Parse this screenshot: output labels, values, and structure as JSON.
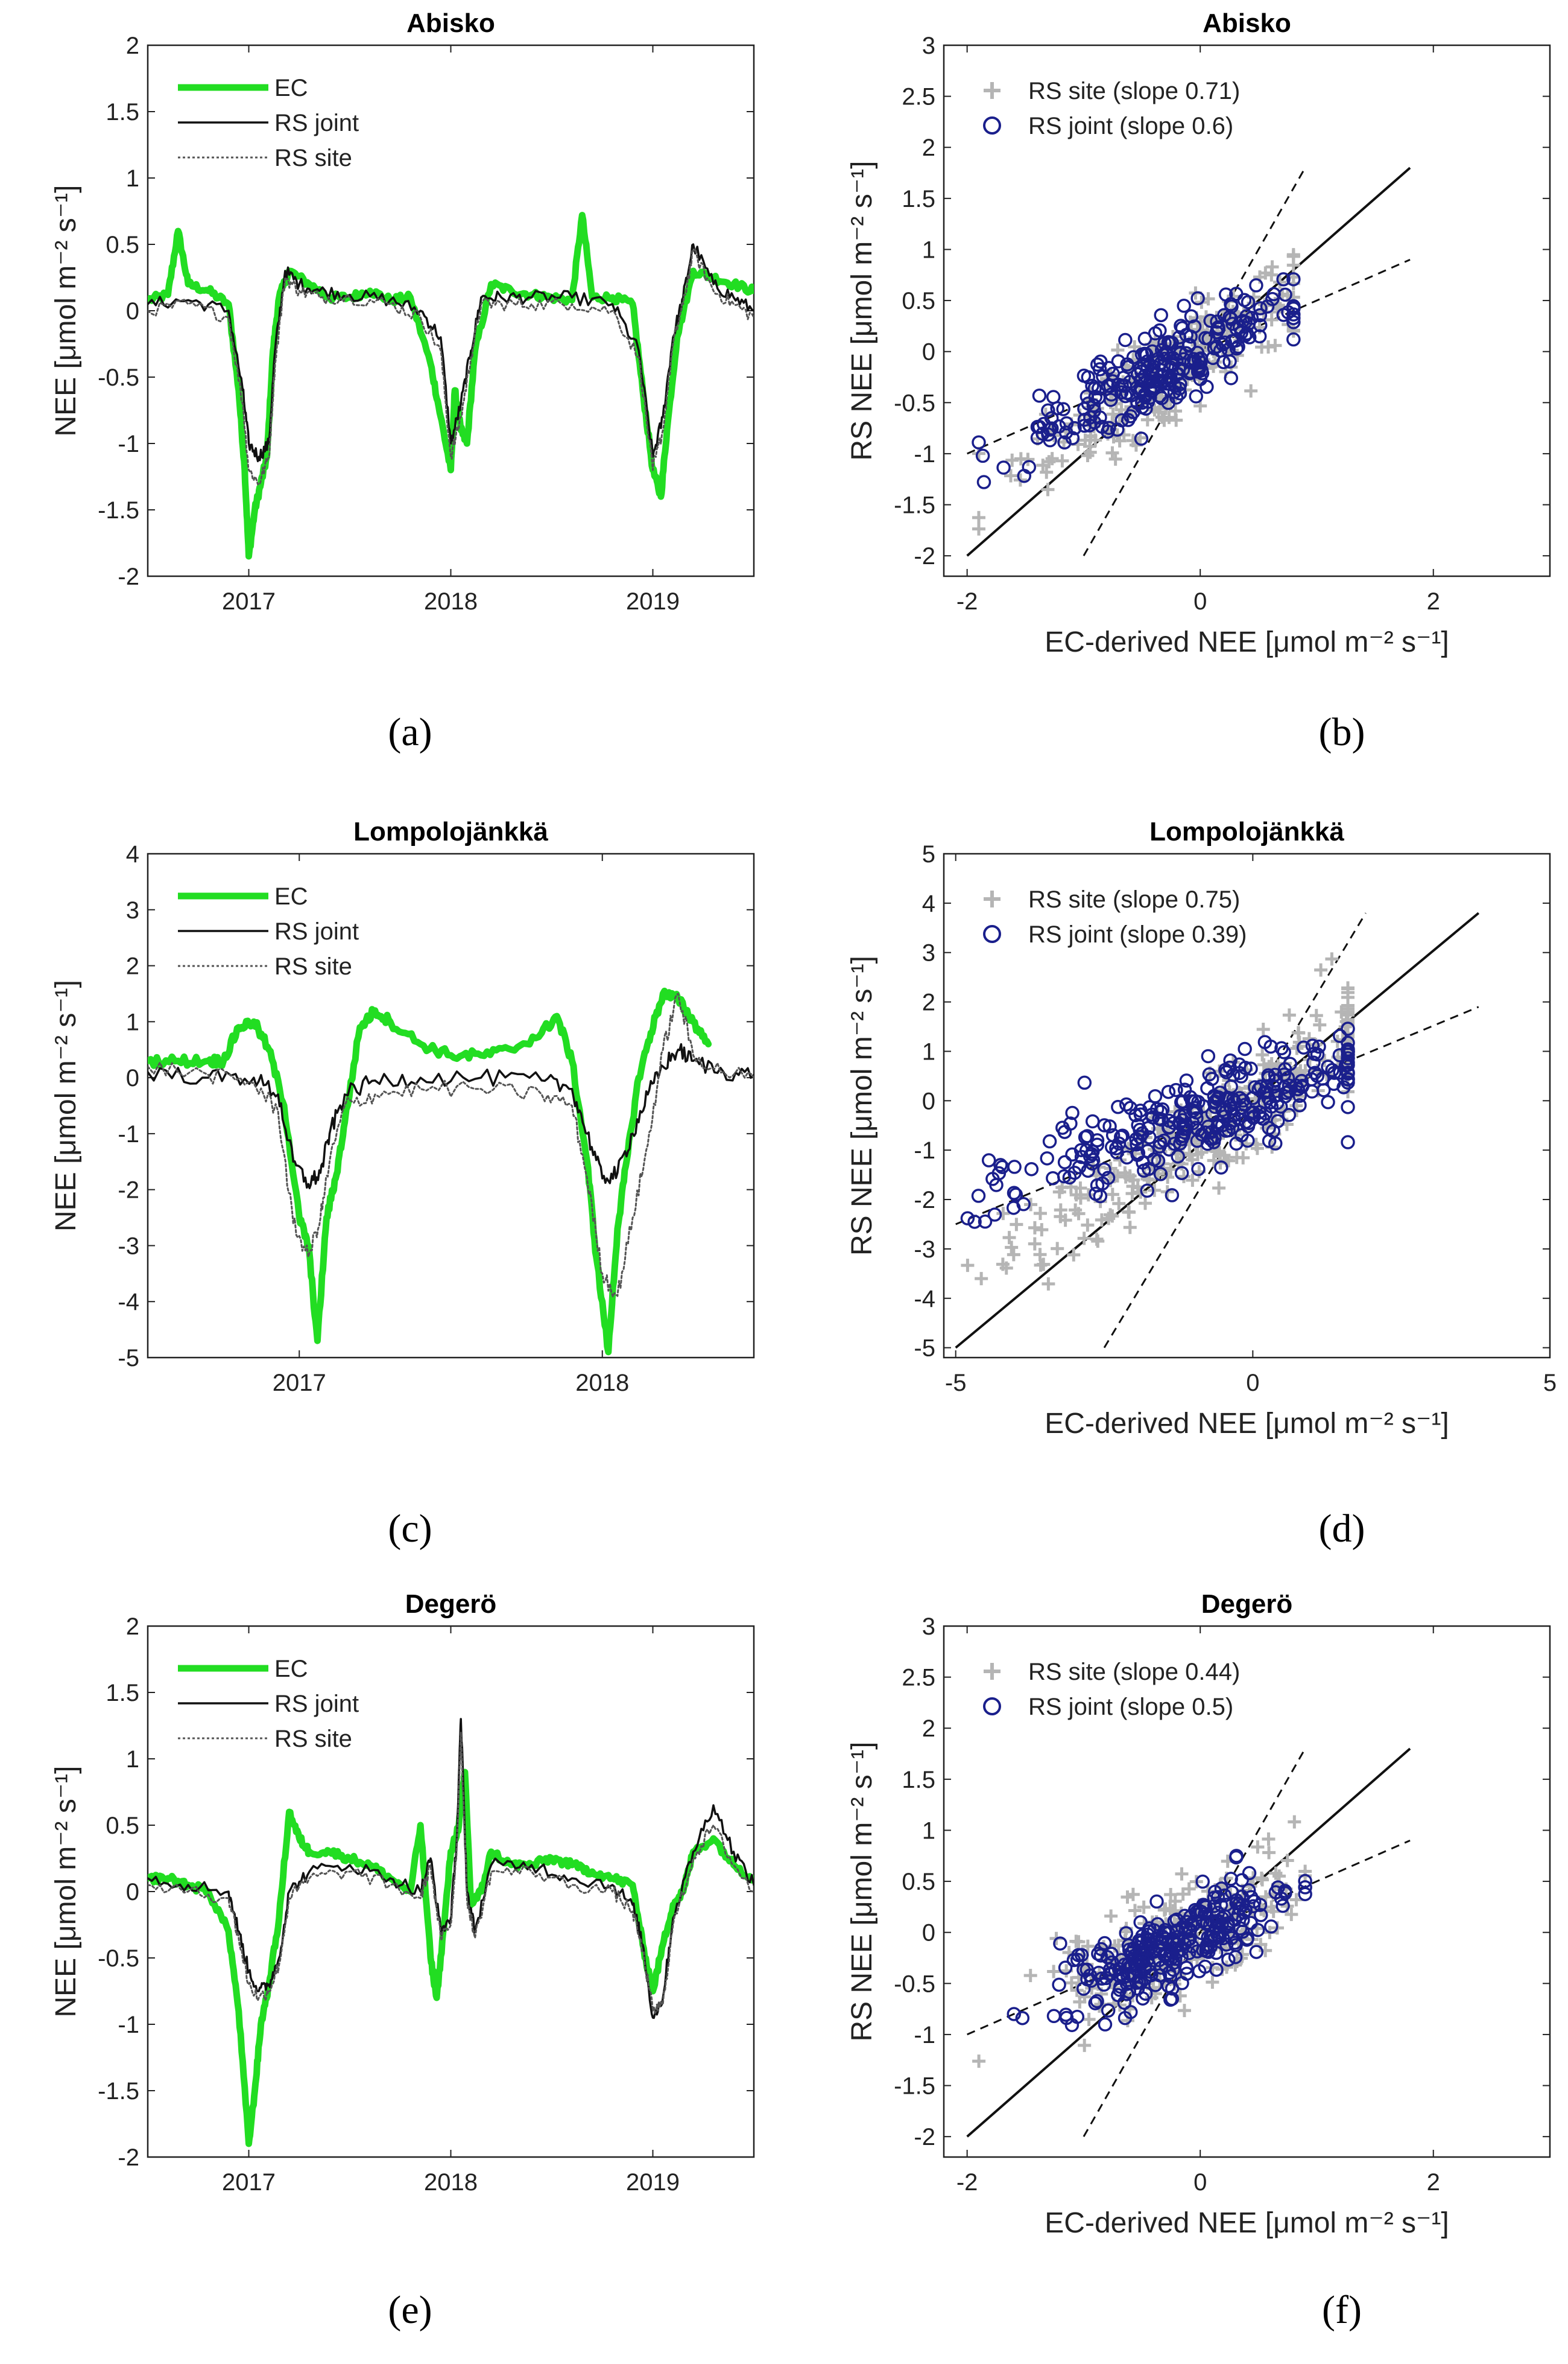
{
  "figure": {
    "panel_letters": [
      "(a)",
      "(b)",
      "(c)",
      "(d)",
      "(e)",
      "(f)"
    ]
  },
  "colors": {
    "ec": "#22dd22",
    "rs_joint": "#111111",
    "rs_site": "#555555",
    "scatter_site": "#b5b5b5",
    "scatter_joint": "#1a1f8c"
  },
  "chart_data": [
    {
      "id": "a",
      "type": "line",
      "title": "Abisko",
      "ylabel": "NEE [μmol m⁻² s⁻¹]",
      "xlabel": "",
      "xlim": [
        2016.5,
        2019.5
      ],
      "ylim": [
        -2,
        2
      ],
      "xticks": [
        2017,
        2018,
        2019
      ],
      "xtick_labels": [
        "2017",
        "2018",
        "2019"
      ],
      "yticks": [
        -2,
        -1.5,
        -1,
        -0.5,
        0,
        0.5,
        1,
        1.5,
        2
      ],
      "ytick_labels": [
        "-2",
        "-1.5",
        "-1",
        "-0.5",
        "0",
        "0.5",
        "1",
        "1.5",
        "2"
      ],
      "legend": [
        "EC",
        "RS joint",
        "RS site"
      ],
      "series": [
        {
          "name": "EC",
          "x": [
            2016.5,
            2016.6,
            2016.65,
            2016.7,
            2016.8,
            2016.9,
            2016.95,
            2016.98,
            2017.0,
            2017.03,
            2017.06,
            2017.09,
            2017.12,
            2017.15,
            2017.2,
            2017.3,
            2017.4,
            2017.5,
            2017.6,
            2017.7,
            2017.8,
            2017.9,
            2017.95,
            2018.0,
            2018.02,
            2018.05,
            2018.08,
            2018.12,
            2018.2,
            2018.3,
            2018.4,
            2018.5,
            2018.6,
            2018.65,
            2018.7,
            2018.8,
            2018.9,
            2018.95,
            2019.0,
            2019.04,
            2019.07,
            2019.12,
            2019.2,
            2019.3,
            2019.4,
            2019.5
          ],
          "y": [
            0.08,
            0.12,
            0.6,
            0.2,
            0.15,
            0.05,
            -0.6,
            -1.2,
            -1.85,
            -1.5,
            -1.3,
            -1.1,
            -0.3,
            0.1,
            0.3,
            0.2,
            0.1,
            0.1,
            0.15,
            0.08,
            0.1,
            -0.4,
            -0.8,
            -1.2,
            -0.6,
            -0.9,
            -1.0,
            -0.3,
            0.2,
            0.15,
            0.12,
            0.1,
            0.08,
            0.72,
            0.1,
            0.1,
            0.05,
            -0.6,
            -1.2,
            -1.4,
            -0.9,
            -0.2,
            0.3,
            0.25,
            0.2,
            0.15
          ]
        },
        {
          "name": "RS joint",
          "x": [
            2016.5,
            2016.7,
            2016.9,
            2016.97,
            2017.0,
            2017.05,
            2017.1,
            2017.13,
            2017.18,
            2017.25,
            2017.35,
            2017.5,
            2017.7,
            2017.85,
            2017.95,
            2018.0,
            2018.05,
            2018.1,
            2018.15,
            2018.25,
            2018.4,
            2018.6,
            2018.8,
            2018.93,
            2019.0,
            2019.05,
            2019.1,
            2019.15,
            2019.2,
            2019.3,
            2019.4,
            2019.5
          ],
          "y": [
            0.05,
            0.08,
            0.0,
            -0.6,
            -1.0,
            -1.1,
            -1.0,
            -0.3,
            0.3,
            0.2,
            0.15,
            0.12,
            0.08,
            0.0,
            -0.2,
            -1.0,
            -0.7,
            -0.3,
            0.1,
            0.1,
            0.1,
            0.1,
            0.05,
            -0.3,
            -1.1,
            -0.8,
            -0.2,
            0.1,
            0.5,
            0.2,
            0.1,
            0.0
          ]
        },
        {
          "name": "RS site",
          "x": [
            2016.5,
            2016.7,
            2016.9,
            2016.97,
            2017.0,
            2017.05,
            2017.1,
            2017.13,
            2017.18,
            2017.25,
            2017.35,
            2017.5,
            2017.7,
            2017.85,
            2017.95,
            2018.0,
            2018.05,
            2018.1,
            2018.15,
            2018.25,
            2018.4,
            2018.6,
            2018.8,
            2018.93,
            2019.0,
            2019.05,
            2019.1,
            2019.15,
            2019.2,
            2019.3,
            2019.4,
            2019.5
          ],
          "y": [
            0.0,
            0.05,
            -0.05,
            -0.7,
            -1.2,
            -1.3,
            -1.1,
            -0.4,
            0.25,
            0.15,
            0.1,
            0.1,
            0.05,
            -0.05,
            -0.3,
            -1.1,
            -0.8,
            -0.35,
            0.05,
            0.05,
            0.05,
            0.05,
            0.0,
            -0.35,
            -1.2,
            -0.9,
            -0.25,
            0.05,
            0.45,
            0.15,
            0.05,
            -0.05
          ]
        }
      ]
    },
    {
      "id": "b",
      "type": "scatter",
      "title": "Abisko",
      "ylabel": "RS NEE [μmol m⁻² s⁻¹]",
      "xlabel": "EC-derived NEE [μmol m⁻² s⁻¹]",
      "xlim": [
        -2.2,
        3
      ],
      "ylim": [
        -2.2,
        3
      ],
      "xticks": [
        -2,
        0,
        2
      ],
      "xtick_labels": [
        "-2",
        "0",
        "2"
      ],
      "yticks": [
        -2,
        -1.5,
        -1,
        -0.5,
        0,
        0.5,
        1,
        1.5,
        2,
        2.5,
        3
      ],
      "ytick_labels": [
        "-2",
        "-1.5",
        "-1",
        "-0.5",
        "0",
        "0.5",
        "1",
        "1.5",
        "2",
        "2.5",
        "3"
      ],
      "legend": [
        "RS site (slope 0.71)",
        "RS joint (slope 0.6)"
      ],
      "slopes": {
        "site": 0.71,
        "joint": 0.6
      },
      "one_to_one": [
        -2,
        1.8
      ],
      "bound_lines": {
        "x_range": [
          -2,
          1.8
        ],
        "upper_slope": 2,
        "lower_slope": 0.5
      },
      "cloud": {
        "x_mean": -0.3,
        "x_sd": 0.55,
        "x_min": -1.9,
        "x_max": 0.8,
        "resid_sd": 0.25,
        "n": 260
      }
    },
    {
      "id": "c",
      "type": "line",
      "title": "Lompolojänkkä",
      "ylabel": "NEE [μmol m⁻² s⁻¹]",
      "xlabel": "",
      "xlim": [
        2016.5,
        2018.5
      ],
      "ylim": [
        -5,
        4
      ],
      "xticks": [
        2017,
        2018
      ],
      "xtick_labels": [
        "2017",
        "2018"
      ],
      "yticks": [
        -5,
        -4,
        -3,
        -2,
        -1,
        0,
        1,
        2,
        3,
        4
      ],
      "ytick_labels": [
        "-5",
        "-4",
        "-3",
        "-2",
        "-1",
        "0",
        "1",
        "2",
        "3",
        "4"
      ],
      "legend": [
        "EC",
        "RS joint",
        "RS site"
      ],
      "series": [
        {
          "name": "EC",
          "x": [
            2016.5,
            2016.6,
            2016.7,
            2016.75,
            2016.8,
            2016.85,
            2016.9,
            2016.95,
            2017.0,
            2017.03,
            2017.06,
            2017.09,
            2017.12,
            2017.15,
            2017.2,
            2017.25,
            2017.3,
            2017.4,
            2017.5,
            2017.6,
            2017.7,
            2017.8,
            2017.85,
            2017.9,
            2017.95,
            2017.98,
            2018.02,
            2018.05,
            2018.08,
            2018.12,
            2018.16,
            2018.2,
            2018.25,
            2018.3,
            2018.35
          ],
          "y": [
            0.3,
            0.3,
            0.3,
            0.3,
            0.9,
            1.0,
            0.5,
            -0.5,
            -2.5,
            -3.0,
            -4.7,
            -2.5,
            -1.8,
            -0.8,
            0.9,
            1.2,
            1.0,
            0.6,
            0.4,
            0.4,
            0.5,
            0.8,
            1.1,
            0.3,
            -1.5,
            -3.2,
            -4.9,
            -2.7,
            -1.5,
            0.0,
            0.8,
            1.5,
            1.4,
            1.0,
            0.6
          ]
        },
        {
          "name": "RS joint",
          "x": [
            2016.5,
            2016.7,
            2016.85,
            2016.93,
            2016.98,
            2017.03,
            2017.07,
            2017.1,
            2017.15,
            2017.25,
            2017.4,
            2017.6,
            2017.8,
            2017.9,
            2017.95,
            2018.0,
            2018.05,
            2018.1,
            2018.15,
            2018.2,
            2018.25,
            2018.3,
            2018.4,
            2018.5
          ],
          "y": [
            0.1,
            0.0,
            0.0,
            -0.3,
            -1.5,
            -1.9,
            -1.7,
            -1.0,
            -0.3,
            -0.05,
            0.0,
            0.0,
            -0.05,
            -0.2,
            -1.0,
            -1.8,
            -1.7,
            -1.0,
            -0.3,
            0.2,
            0.5,
            0.3,
            0.1,
            0.05
          ]
        },
        {
          "name": "RS site",
          "x": [
            2016.5,
            2016.7,
            2016.85,
            2016.93,
            2016.98,
            2017.03,
            2017.07,
            2017.1,
            2017.15,
            2017.25,
            2017.4,
            2017.6,
            2017.8,
            2017.9,
            2017.95,
            2018.0,
            2018.05,
            2018.1,
            2018.15,
            2018.2,
            2018.25,
            2018.3,
            2018.4,
            2018.5
          ],
          "y": [
            0.2,
            0.05,
            -0.1,
            -0.6,
            -2.6,
            -3.2,
            -2.5,
            -1.5,
            -0.5,
            -0.3,
            -0.2,
            -0.2,
            -0.3,
            -0.5,
            -1.8,
            -3.5,
            -3.9,
            -2.5,
            -1.2,
            0.5,
            1.5,
            0.4,
            0.1,
            0.0
          ]
        }
      ]
    },
    {
      "id": "d",
      "type": "scatter",
      "title": "Lompolojänkkä",
      "ylabel": "RS NEE [μmol m⁻² s⁻¹]",
      "xlabel": "EC-derived NEE [μmol m⁻² s⁻¹]",
      "xlim": [
        -5.2,
        5
      ],
      "ylim": [
        -5.2,
        5
      ],
      "xticks": [
        -5,
        0,
        5
      ],
      "xtick_labels": [
        "-5",
        "0",
        "5"
      ],
      "yticks": [
        -5,
        -4,
        -3,
        -2,
        -1,
        0,
        1,
        2,
        3,
        4,
        5
      ],
      "ytick_labels": [
        "-5",
        "-4",
        "-3",
        "-2",
        "-1",
        "0",
        "1",
        "2",
        "3",
        "4",
        "5"
      ],
      "legend": [
        "RS site (slope 0.75)",
        "RS joint (slope 0.39)"
      ],
      "slopes": {
        "site": 0.75,
        "joint": 0.39
      },
      "one_to_one": [
        -5,
        3.8
      ],
      "bound_lines": {
        "x_range": [
          -5,
          3.8
        ],
        "upper_slope": 2,
        "lower_slope": 0.5
      },
      "cloud": {
        "x_mean": -0.8,
        "x_sd": 1.6,
        "x_min": -4.8,
        "x_max": 1.6,
        "resid_sd": 0.55,
        "n": 300
      }
    },
    {
      "id": "e",
      "type": "line",
      "title": "Degerö",
      "ylabel": "NEE [μmol m⁻² s⁻¹]",
      "xlabel": "",
      "xlim": [
        2016.5,
        2019.5
      ],
      "ylim": [
        -2,
        2
      ],
      "xticks": [
        2017,
        2018,
        2019
      ],
      "xtick_labels": [
        "2017",
        "2018",
        "2019"
      ],
      "yticks": [
        -2,
        -1.5,
        -1,
        -0.5,
        0,
        0.5,
        1,
        1.5,
        2
      ],
      "ytick_labels": [
        "-2",
        "-1.5",
        "-1",
        "-0.5",
        "0",
        "0.5",
        "1",
        "1.5",
        "2"
      ],
      "legend": [
        "EC",
        "RS joint",
        "RS site"
      ],
      "series": [
        {
          "name": "EC",
          "x": [
            2016.5,
            2016.6,
            2016.7,
            2016.8,
            2016.9,
            2016.95,
            2017.0,
            2017.03,
            2017.06,
            2017.1,
            2017.15,
            2017.2,
            2017.25,
            2017.3,
            2017.4,
            2017.5,
            2017.6,
            2017.7,
            2017.8,
            2017.85,
            2017.9,
            2017.93,
            2017.97,
            2018.0,
            2018.04,
            2018.07,
            2018.1,
            2018.15,
            2018.2,
            2018.3,
            2018.4,
            2018.5,
            2018.6,
            2018.7,
            2018.8,
            2018.9,
            2018.95,
            2019.0,
            2019.05,
            2019.1,
            2019.15,
            2019.2,
            2019.3,
            2019.4,
            2019.5
          ],
          "y": [
            0.1,
            0.1,
            0.05,
            0.0,
            -0.3,
            -0.9,
            -1.9,
            -1.5,
            -1.0,
            -0.7,
            -0.2,
            0.6,
            0.4,
            0.3,
            0.3,
            0.25,
            0.2,
            0.1,
            0.0,
            0.5,
            -0.5,
            -0.8,
            -0.2,
            0.3,
            0.5,
            0.9,
            -0.1,
            0.0,
            0.3,
            0.2,
            0.2,
            0.25,
            0.2,
            0.15,
            0.1,
            0.05,
            -0.4,
            -0.75,
            -0.4,
            -0.1,
            0.0,
            0.3,
            0.4,
            0.2,
            0.1
          ]
        },
        {
          "name": "RS joint",
          "x": [
            2016.5,
            2016.7,
            2016.9,
            2016.95,
            2017.0,
            2017.05,
            2017.1,
            2017.15,
            2017.2,
            2017.3,
            2017.5,
            2017.7,
            2017.85,
            2017.9,
            2017.95,
            2018.0,
            2018.03,
            2018.05,
            2018.08,
            2018.12,
            2018.2,
            2018.4,
            2018.6,
            2018.8,
            2018.9,
            2018.95,
            2019.0,
            2019.05,
            2019.1,
            2019.2,
            2019.3,
            2019.4,
            2019.5
          ],
          "y": [
            0.1,
            0.05,
            0.0,
            -0.3,
            -0.6,
            -0.75,
            -0.7,
            -0.5,
            0.0,
            0.15,
            0.2,
            0.1,
            0.0,
            0.25,
            -0.3,
            -0.2,
            0.4,
            1.3,
            0.0,
            -0.3,
            0.2,
            0.2,
            0.1,
            0.05,
            -0.1,
            -0.4,
            -0.95,
            -0.8,
            -0.2,
            0.3,
            0.65,
            0.3,
            0.05
          ]
        },
        {
          "name": "RS site",
          "x": [
            2016.5,
            2016.7,
            2016.9,
            2016.95,
            2017.0,
            2017.05,
            2017.1,
            2017.15,
            2017.2,
            2017.3,
            2017.5,
            2017.7,
            2017.85,
            2017.9,
            2017.95,
            2018.0,
            2018.03,
            2018.05,
            2018.08,
            2018.12,
            2018.2,
            2018.4,
            2018.6,
            2018.8,
            2018.9,
            2018.95,
            2019.0,
            2019.05,
            2019.1,
            2019.2,
            2019.3,
            2019.4,
            2019.5
          ],
          "y": [
            0.05,
            0.0,
            -0.05,
            -0.35,
            -0.7,
            -0.8,
            -0.75,
            -0.55,
            -0.05,
            0.1,
            0.15,
            0.05,
            -0.05,
            0.2,
            -0.35,
            -0.25,
            0.35,
            1.2,
            -0.05,
            -0.35,
            0.15,
            0.15,
            0.05,
            0.0,
            -0.15,
            -0.45,
            -0.9,
            -0.85,
            -0.25,
            0.25,
            0.5,
            0.2,
            0.0
          ]
        }
      ]
    },
    {
      "id": "f",
      "type": "scatter",
      "title": "Degerö",
      "ylabel": "RS NEE [μmol m⁻² s⁻¹]",
      "xlabel": "EC-derived NEE [μmol m⁻² s⁻¹]",
      "xlim": [
        -2.2,
        3
      ],
      "ylim": [
        -2.2,
        3
      ],
      "xticks": [
        -2,
        0,
        2
      ],
      "xtick_labels": [
        "-2",
        "0",
        "2"
      ],
      "yticks": [
        -2,
        -1.5,
        -1,
        -0.5,
        0,
        0.5,
        1,
        1.5,
        2,
        2.5,
        3
      ],
      "ytick_labels": [
        "-2",
        "-1.5",
        "-1",
        "-0.5",
        "0",
        "0.5",
        "1",
        "1.5",
        "2",
        "2.5",
        "3"
      ],
      "legend": [
        "RS site (slope 0.44)",
        "RS joint (slope 0.5)"
      ],
      "slopes": {
        "site": 0.44,
        "joint": 0.5
      },
      "one_to_one": [
        -2,
        1.8
      ],
      "bound_lines": {
        "x_range": [
          -2,
          1.8
        ],
        "upper_slope": 2,
        "lower_slope": 0.5
      },
      "cloud": {
        "x_mean": -0.2,
        "x_sd": 0.5,
        "x_min": -1.9,
        "x_max": 0.9,
        "resid_sd": 0.25,
        "n": 280
      }
    }
  ]
}
